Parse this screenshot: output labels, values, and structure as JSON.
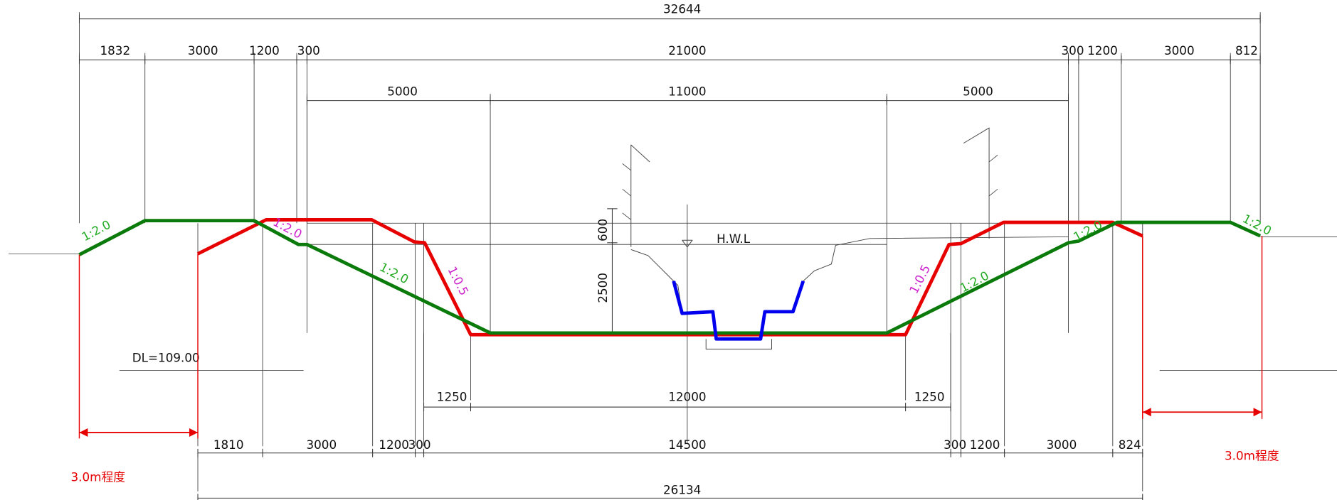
{
  "dimensions": {
    "overall_top": "32644",
    "top_row": [
      "1832",
      "3000",
      "1200",
      "300",
      "21000",
      "300",
      "1200",
      "3000",
      "812"
    ],
    "channel_row": [
      "5000",
      "11000",
      "5000"
    ],
    "vertical": [
      "600",
      "2500"
    ],
    "bottom_width": [
      "1250",
      "12000",
      "1250"
    ],
    "bottom_row": [
      "1810",
      "3000",
      "1200",
      "300",
      "14500",
      "300",
      "1200",
      "3000",
      "824"
    ],
    "overall_bottom": "26134"
  },
  "labels": {
    "datum": "DL=109.00",
    "water_level": "H.W.L",
    "slopes": [
      "1:2.0",
      "1:2.0",
      "1:2.0",
      "1:0.5",
      "1:0.5",
      "1:2.0",
      "1:2.0",
      "1:2.0"
    ]
  },
  "annotations": [
    "3.0m程度",
    "3.0m程度"
  ]
}
